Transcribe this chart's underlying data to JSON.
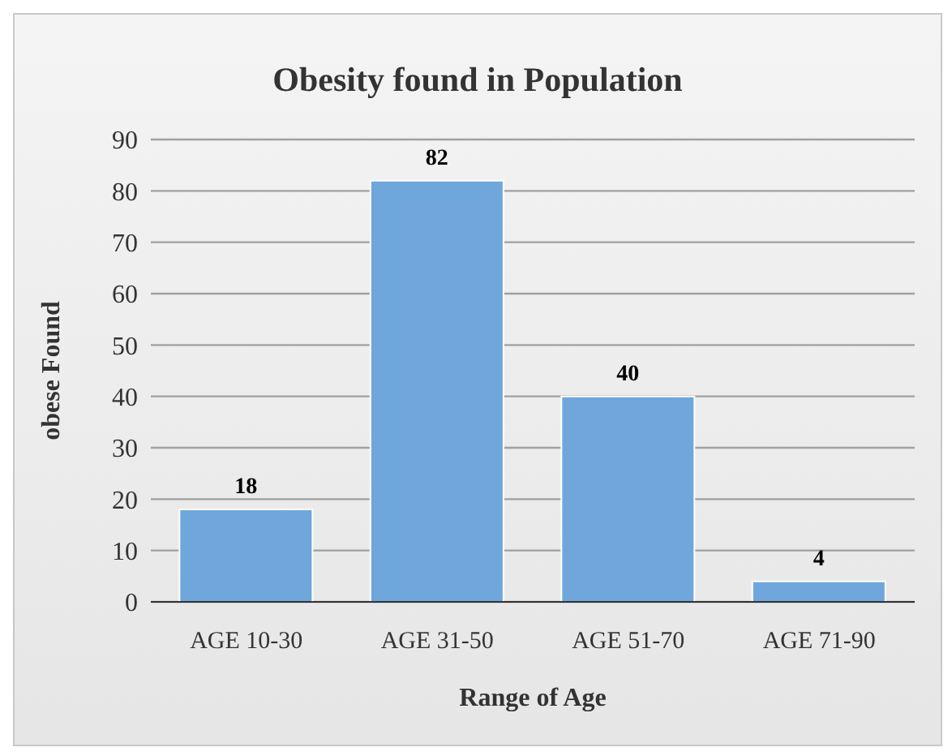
{
  "chart_data": {
    "type": "bar",
    "title": "Obesity found in Population",
    "xlabel": "Range of Age",
    "ylabel": "obese Found",
    "categories": [
      "AGE 10-30",
      "AGE 31-50",
      "AGE 51-70",
      "AGE 71-90"
    ],
    "values": [
      18,
      82,
      40,
      4
    ],
    "color": "#6fa6dc",
    "ylim": [
      0,
      90
    ],
    "yticks": [
      0,
      10,
      20,
      30,
      40,
      50,
      60,
      70,
      80,
      90
    ],
    "grid": "y",
    "data_labels": true
  }
}
